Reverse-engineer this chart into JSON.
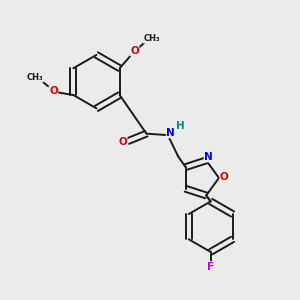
{
  "bg_color": "#ebebeb",
  "bond_color": "#1a1a1a",
  "bond_width": 1.4,
  "atom_colors": {
    "O": "#dd0000",
    "N": "#0000ee",
    "F": "#cc00cc",
    "H": "#008888",
    "C": "#1a1a1a"
  },
  "font_size": 7.5
}
